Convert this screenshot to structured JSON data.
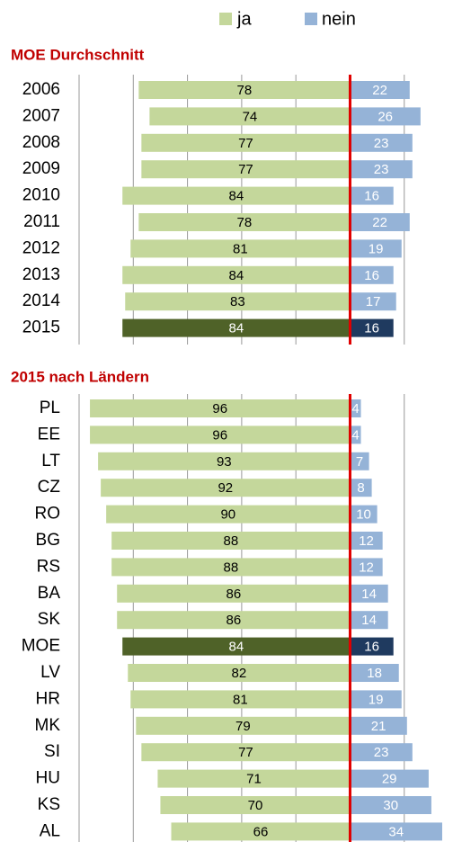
{
  "chart_data": [
    {
      "type": "bar",
      "title": "MOE Durchschnitt",
      "categories": [
        "2006",
        "2007",
        "2008",
        "2009",
        "2010",
        "2011",
        "2012",
        "2013",
        "2014",
        "2015"
      ],
      "series": [
        {
          "name": "ja",
          "color": "#c4d79b",
          "highlight_color": "#4f6228",
          "values": [
            78,
            74,
            77,
            77,
            84,
            78,
            81,
            84,
            83,
            84
          ]
        },
        {
          "name": "nein",
          "color": "#95b3d7",
          "highlight_color": "#1f3a5f",
          "values": [
            22,
            26,
            23,
            23,
            16,
            22,
            19,
            16,
            17,
            16
          ]
        }
      ],
      "highlight_category": "2015",
      "xlim": [
        -100,
        35
      ],
      "xticks": [
        -100,
        -80,
        -60,
        -40,
        -20,
        0,
        20
      ],
      "grid": true
    },
    {
      "type": "bar",
      "title": "2015 nach Ländern",
      "categories": [
        "PL",
        "EE",
        "LT",
        "CZ",
        "RO",
        "BG",
        "RS",
        "BA",
        "SK",
        "MOE",
        "LV",
        "HR",
        "MK",
        "SI",
        "HU",
        "KS",
        "AL"
      ],
      "series": [
        {
          "name": "ja",
          "color": "#c4d79b",
          "highlight_color": "#4f6228",
          "values": [
            96,
            96,
            93,
            92,
            90,
            88,
            88,
            86,
            86,
            84,
            82,
            81,
            79,
            77,
            71,
            70,
            66
          ]
        },
        {
          "name": "nein",
          "color": "#95b3d7",
          "highlight_color": "#1f3a5f",
          "values": [
            4,
            4,
            7,
            8,
            10,
            12,
            12,
            14,
            14,
            16,
            18,
            19,
            21,
            23,
            29,
            30,
            34
          ]
        }
      ],
      "highlight_category": "MOE",
      "xlim": [
        -100,
        35
      ],
      "xticks": [
        -100,
        -80,
        -60,
        -40,
        -20,
        0,
        20
      ],
      "grid": true
    }
  ]
}
